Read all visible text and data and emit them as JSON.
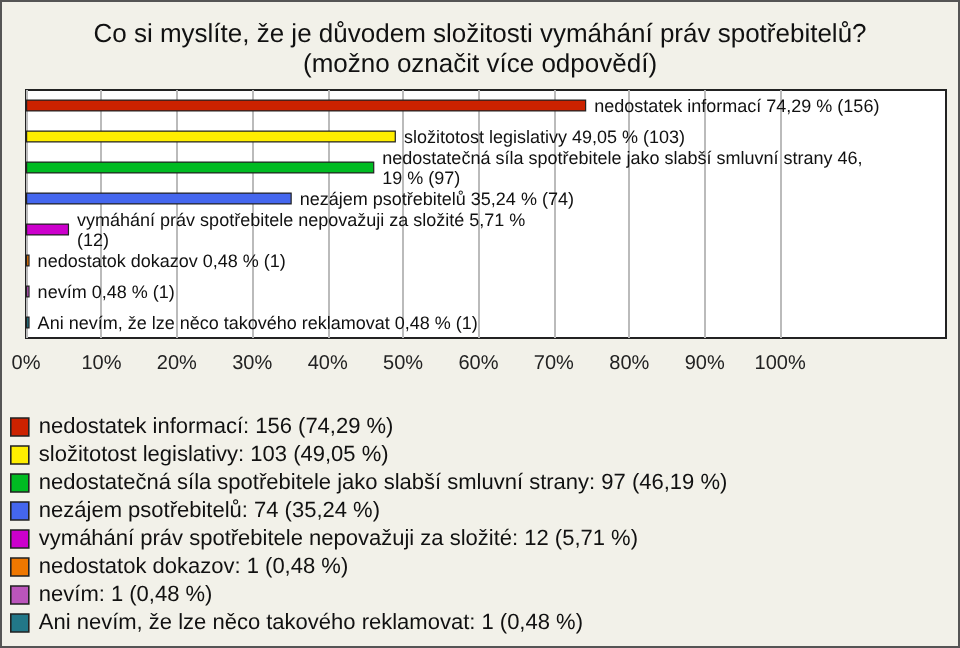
{
  "chart_data": {
    "type": "bar",
    "orientation": "horizontal",
    "stacked": true,
    "title": "Co si myslíte, že je důvodem složitosti vymáhání práv spotřebitelů?",
    "subtitle": "(možno označit více odpovědí)",
    "categories": [
      null,
      null,
      null,
      null,
      null,
      null,
      null,
      null
    ],
    "series": [
      {
        "name": "nedostatek informací: 156 (74,29 %)",
        "color": "#cc2200",
        "values": [
          74.29,
          null,
          null,
          null,
          null,
          null,
          null,
          null
        ],
        "value_labels": [
          "nedostatek informací 74,29 % (156)",
          null,
          null,
          null,
          null,
          null,
          null,
          null
        ]
      },
      {
        "name": "složitotost legislativy: 103 (49,05 %)",
        "color": "#ffee00",
        "values": [
          null,
          49.05,
          null,
          null,
          null,
          null,
          null,
          null
        ],
        "value_labels": [
          null,
          "složitotost legislativy 49,05 % (103)",
          null,
          null,
          null,
          null,
          null,
          null
        ]
      },
      {
        "name": "nedostatečná síla spotřebitele jako slabší smluvní strany: 97 (46,19 %)",
        "color": "#00bb22",
        "values": [
          null,
          null,
          46.19,
          null,
          null,
          null,
          null,
          null
        ],
        "value_labels": [
          null,
          null,
          "nedostatečná síla spotřebitele jako slabší smluvní strany 46,19 % (97)",
          null,
          null,
          null,
          null,
          null
        ]
      },
      {
        "name": "nezájem psotřebitelů: 74 (35,24 %)",
        "color": "#4466ee",
        "values": [
          null,
          null,
          null,
          35.24,
          null,
          null,
          null,
          null
        ],
        "value_labels": [
          null,
          null,
          null,
          "nezájem psotřebitelů 35,24 % (74)",
          null,
          null,
          null,
          null
        ]
      },
      {
        "name": "vymáhání práv spotřebitele nepovažuji za složité: 12 (5,71 %)",
        "color": "#cc00cc",
        "values": [
          null,
          null,
          null,
          null,
          5.71,
          null,
          null,
          null
        ],
        "value_labels": [
          null,
          null,
          null,
          null,
          "vymáhání práv spotřebitele nepovažuji za složité 5,71 % (12)",
          null,
          null,
          null
        ]
      },
      {
        "name": "nedostatok dokazov: 1 (0,48 %)",
        "color": "#ee7700",
        "values": [
          null,
          null,
          null,
          null,
          null,
          0.48,
          null,
          null
        ],
        "value_labels": [
          null,
          null,
          null,
          null,
          null,
          "nedostatok dokazov 0,48 % (1)",
          null,
          null
        ]
      },
      {
        "name": "nevím: 1 (0,48 %)",
        "color": "#bb55bb",
        "values": [
          null,
          null,
          null,
          null,
          null,
          null,
          0.48,
          null
        ],
        "value_labels": [
          null,
          null,
          null,
          null,
          null,
          null,
          "nevím 0,48 % (1)",
          null
        ]
      },
      {
        "name": "Ani nevím, že lze něco takového reklamovat: 1 (0,48 %)",
        "color": "#227788",
        "values": [
          null,
          null,
          null,
          null,
          null,
          null,
          null,
          0.48
        ],
        "value_labels": [
          null,
          null,
          null,
          null,
          null,
          null,
          null,
          "Ani nevím, že lze něco takového reklamovat 0,48 % (1)"
        ]
      }
    ],
    "xlim": [
      0,
      122
    ],
    "xticks": [
      {
        "value": 0,
        "label": "0%"
      },
      {
        "value": 10,
        "label": "10%"
      },
      {
        "value": 20,
        "label": "20%"
      },
      {
        "value": 30,
        "label": "30%"
      },
      {
        "value": 40,
        "label": "40%"
      },
      {
        "value": 50,
        "label": "50%"
      },
      {
        "value": 60,
        "label": "60%"
      },
      {
        "value": 70,
        "label": "70%"
      },
      {
        "value": 80,
        "label": "80%"
      },
      {
        "value": 90,
        "label": "90%"
      },
      {
        "value": 100,
        "label": "100%"
      }
    ],
    "grid": "x",
    "legend": "bottom",
    "tick_labels": "x"
  }
}
